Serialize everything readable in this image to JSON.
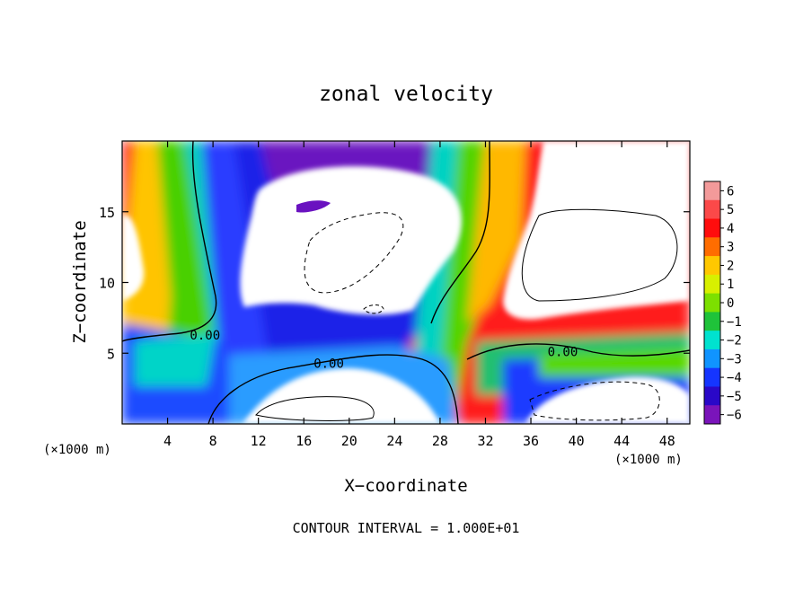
{
  "chart_data": {
    "type": "heatmap",
    "title": "zonal velocity",
    "xlabel": "X−coordinate",
    "ylabel": "Z−coordinate",
    "x_unit_left": "(×1000 m)",
    "x_unit_right": "(×1000 m)",
    "footer": "CONTOUR INTERVAL = 1.000E+01",
    "xlim": [
      0,
      50
    ],
    "ylim": [
      0,
      20
    ],
    "xticks": [
      4,
      8,
      12,
      16,
      20,
      24,
      28,
      32,
      36,
      40,
      44,
      48
    ],
    "yticks": [
      5,
      10,
      15
    ],
    "colorbar": {
      "ticks": [
        6,
        5,
        4,
        3,
        2,
        1,
        0,
        -1,
        -2,
        -3,
        -4,
        -5,
        -6
      ],
      "tick_labels": [
        "6",
        "5",
        "4",
        "3",
        "2",
        "1",
        "0",
        "−1",
        "−2",
        "−3",
        "−4",
        "−5",
        "−6"
      ],
      "colors": [
        "#f39a9a",
        "#fb4949",
        "#ff0d0d",
        "#ff6d00",
        "#ffc800",
        "#d8f000",
        "#7de000",
        "#1fc33a",
        "#00e2cf",
        "#1094ff",
        "#1535ff",
        "#2a08c8",
        "#7a14ba"
      ]
    },
    "contour_labels": [
      {
        "text": "0.00",
        "x": 7.3,
        "y": 6.3
      },
      {
        "text": "0.00",
        "x": 18.2,
        "y": 4.3
      },
      {
        "text": "0.00",
        "x": 38.8,
        "y": 5.1
      }
    ]
  }
}
